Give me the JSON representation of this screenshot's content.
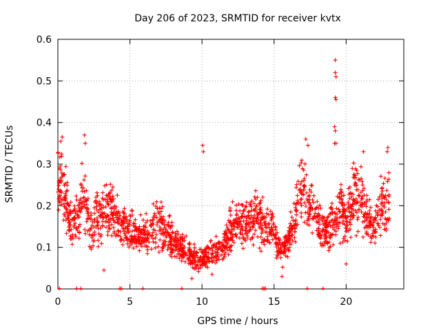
{
  "chart_data": {
    "type": "scatter",
    "title": "Day 206 of 2023, SRMTID for receiver kvtx",
    "xlabel": "GPS time / hours",
    "ylabel": "SRMTID / TECUs",
    "xlim": [
      0,
      24
    ],
    "ylim": [
      0,
      0.6
    ],
    "xticks": [
      0,
      5,
      10,
      15,
      20
    ],
    "yticks": [
      0,
      0.1,
      0.2,
      0.3,
      0.4,
      0.5,
      0.6
    ],
    "xtick_labels": [
      "0",
      "5",
      "10",
      "15",
      "20"
    ],
    "ytick_labels": [
      "0",
      "0.1",
      "0.2",
      "0.3",
      "0.4",
      "0.5",
      "0.6"
    ],
    "grid": true,
    "marker": "+",
    "color": "#ff0000",
    "data_span_hours": [
      0,
      23
    ],
    "trend": [
      [
        0.0,
        0.27
      ],
      [
        0.3,
        0.26
      ],
      [
        0.6,
        0.2
      ],
      [
        1.0,
        0.15
      ],
      [
        1.5,
        0.19
      ],
      [
        1.8,
        0.24
      ],
      [
        2.2,
        0.14
      ],
      [
        2.7,
        0.19
      ],
      [
        3.0,
        0.17
      ],
      [
        3.5,
        0.19
      ],
      [
        4.0,
        0.17
      ],
      [
        4.5,
        0.15
      ],
      [
        5.0,
        0.14
      ],
      [
        5.5,
        0.13
      ],
      [
        6.0,
        0.13
      ],
      [
        6.5,
        0.15
      ],
      [
        7.0,
        0.16
      ],
      [
        7.5,
        0.14
      ],
      [
        8.0,
        0.11
      ],
      [
        8.5,
        0.1
      ],
      [
        9.0,
        0.09
      ],
      [
        9.5,
        0.07
      ],
      [
        10.0,
        0.07
      ],
      [
        10.5,
        0.08
      ],
      [
        11.0,
        0.09
      ],
      [
        11.5,
        0.1
      ],
      [
        12.0,
        0.14
      ],
      [
        12.5,
        0.16
      ],
      [
        13.0,
        0.16
      ],
      [
        13.5,
        0.17
      ],
      [
        14.0,
        0.17
      ],
      [
        14.5,
        0.14
      ],
      [
        15.0,
        0.13
      ],
      [
        15.5,
        0.09
      ],
      [
        16.0,
        0.11
      ],
      [
        16.5,
        0.18
      ],
      [
        17.0,
        0.24
      ],
      [
        17.5,
        0.2
      ],
      [
        18.0,
        0.17
      ],
      [
        18.5,
        0.14
      ],
      [
        19.0,
        0.16
      ],
      [
        19.3,
        0.19
      ],
      [
        19.7,
        0.2
      ],
      [
        20.0,
        0.15
      ],
      [
        20.5,
        0.22
      ],
      [
        21.0,
        0.24
      ],
      [
        21.5,
        0.17
      ],
      [
        22.0,
        0.15
      ],
      [
        22.5,
        0.2
      ],
      [
        23.0,
        0.2
      ]
    ],
    "outliers": [
      [
        19.25,
        0.55
      ],
      [
        19.25,
        0.52
      ],
      [
        19.3,
        0.51
      ],
      [
        19.25,
        0.46
      ],
      [
        19.3,
        0.455
      ],
      [
        19.2,
        0.39
      ],
      [
        19.25,
        0.38
      ],
      [
        19.3,
        0.35
      ],
      [
        19.2,
        0.35
      ],
      [
        10.05,
        0.345
      ],
      [
        10.1,
        0.33
      ],
      [
        1.85,
        0.37
      ],
      [
        1.9,
        0.35
      ],
      [
        0.3,
        0.365
      ],
      [
        0.2,
        0.355
      ],
      [
        17.2,
        0.36
      ],
      [
        17.35,
        0.345
      ],
      [
        21.2,
        0.33
      ],
      [
        22.9,
        0.34
      ],
      [
        22.85,
        0.33
      ],
      [
        9.3,
        0.025
      ],
      [
        10.7,
        0.035
      ],
      [
        15.55,
        0.03
      ],
      [
        3.2,
        0.045
      ],
      [
        20.0,
        0.06
      ]
    ],
    "zero_markers": [
      0.1,
      1.3,
      1.6,
      4.3,
      4.4,
      5.9,
      8.6,
      14.2,
      14.3,
      14.4,
      17.3,
      18.4
    ],
    "points_per_hour": 80
  }
}
